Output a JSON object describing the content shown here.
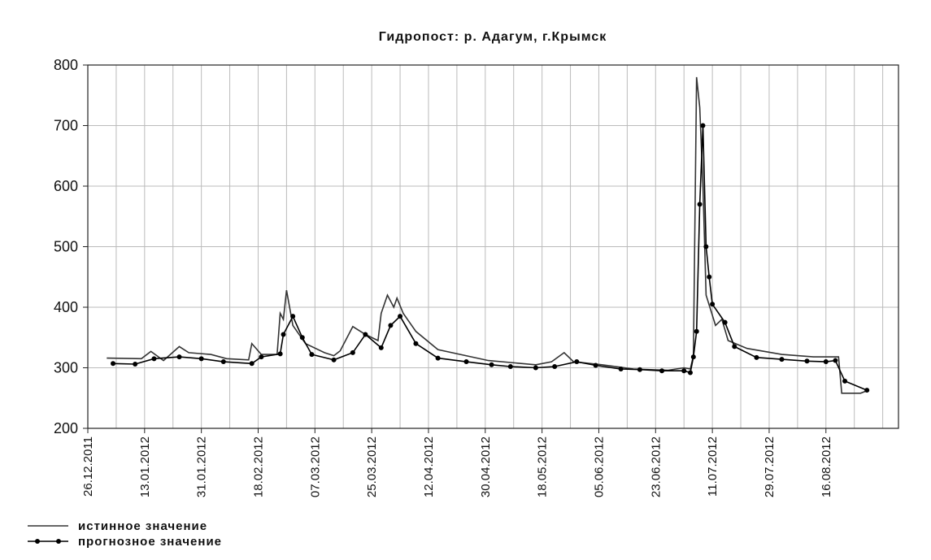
{
  "chart_data": {
    "type": "line",
    "title": "Гидропост: р. Адагум, г.Крымск",
    "xlim": [
      "26.12.2011",
      "08.09.2012"
    ],
    "xticks": [
      "26.12.2011",
      "13.01.2012",
      "31.01.2012",
      "18.02.2012",
      "07.03.2012",
      "25.03.2012",
      "12.04.2012",
      "30.04.2012",
      "18.05.2012",
      "05.06.2012",
      "23.06.2012",
      "11.07.2012",
      "29.07.2012",
      "16.08.2012"
    ],
    "xgrid_step_days": 9,
    "ylim": [
      200,
      800
    ],
    "yticks": [
      200,
      300,
      400,
      500,
      600,
      700,
      800
    ],
    "grid": true,
    "legend": "bottom-left",
    "series": [
      {
        "name": "истинное значение",
        "color": "#333333",
        "markers": false,
        "x": [
          "01.01.2012",
          "12.01.2012",
          "15.01.2012",
          "19.01.2012",
          "24.01.2012",
          "27.01.2012",
          "03.02.2012",
          "08.02.2012",
          "15.02.2012",
          "16.02.2012",
          "19.02.2012",
          "24.02.2012",
          "25.02.2012",
          "26.02.2012",
          "27.02.2012",
          "29.02.2012",
          "04.03.2012",
          "10.03.2012",
          "13.03.2012",
          "15.03.2012",
          "19.03.2012",
          "23.03.2012",
          "27.03.2012",
          "28.03.2012",
          "30.03.2012",
          "01.04.2012",
          "02.04.2012",
          "04.04.2012",
          "08.04.2012",
          "15.04.2012",
          "01.05.2012",
          "16.05.2012",
          "21.05.2012",
          "25.05.2012",
          "28.05.2012",
          "06.06.2012",
          "16.06.2012",
          "27.06.2012",
          "02.07.2012",
          "04.07.2012",
          "05.07.2012",
          "06.07.2012",
          "07.07.2012",
          "08.07.2012",
          "09.07.2012",
          "12.07.2012",
          "14.07.2012",
          "16.07.2012",
          "22.07.2012",
          "02.08.2012",
          "12.08.2012",
          "20.08.2012",
          "21.08.2012",
          "27.08.2012",
          "29.08.2012"
        ],
        "values": [
          316,
          315,
          327,
          312,
          335,
          325,
          322,
          315,
          313,
          340,
          322,
          322,
          390,
          380,
          428,
          370,
          340,
          325,
          320,
          328,
          368,
          355,
          345,
          390,
          420,
          400,
          415,
          390,
          360,
          330,
          312,
          305,
          310,
          325,
          310,
          305,
          298,
          296,
          300,
          298,
          320,
          780,
          730,
          600,
          420,
          370,
          380,
          345,
          332,
          322,
          318,
          318,
          258,
          258,
          262
        ]
      },
      {
        "name": "прогнозное значение",
        "color": "#000000",
        "markers": true,
        "x": [
          "03.01.2012",
          "10.01.2012",
          "16.01.2012",
          "24.01.2012",
          "31.01.2012",
          "07.02.2012",
          "16.02.2012",
          "19.02.2012",
          "25.02.2012",
          "26.02.2012",
          "29.02.2012",
          "03.03.2012",
          "06.03.2012",
          "13.03.2012",
          "19.03.2012",
          "23.03.2012",
          "28.03.2012",
          "31.03.2012",
          "03.04.2012",
          "08.04.2012",
          "15.04.2012",
          "24.04.2012",
          "02.05.2012",
          "08.05.2012",
          "16.05.2012",
          "22.05.2012",
          "29.05.2012",
          "04.06.2012",
          "12.06.2012",
          "18.06.2012",
          "25.06.2012",
          "02.07.2012",
          "04.07.2012",
          "05.07.2012",
          "06.07.2012",
          "07.07.2012",
          "08.07.2012",
          "09.07.2012",
          "10.07.2012",
          "11.07.2012",
          "15.07.2012",
          "18.07.2012",
          "25.07.2012",
          "02.08.2012",
          "10.08.2012",
          "16.08.2012",
          "19.08.2012",
          "22.08.2012",
          "29.08.2012"
        ],
        "values": [
          307,
          306,
          315,
          318,
          315,
          310,
          307,
          318,
          323,
          355,
          385,
          350,
          322,
          313,
          325,
          355,
          333,
          370,
          385,
          340,
          316,
          310,
          305,
          302,
          300,
          302,
          310,
          304,
          298,
          297,
          295,
          295,
          292,
          318,
          360,
          570,
          700,
          500,
          450,
          405,
          375,
          335,
          317,
          314,
          311,
          310,
          312,
          278,
          263
        ]
      }
    ]
  }
}
